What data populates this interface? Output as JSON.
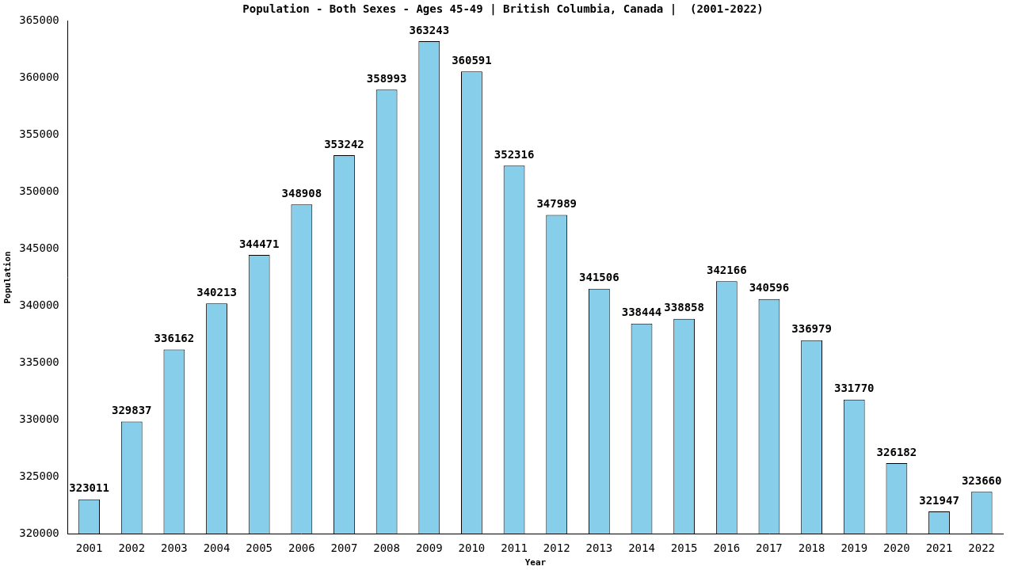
{
  "chart_data": {
    "type": "bar",
    "title": "Population - Both Sexes - Ages 45-49 | British Columbia, Canada |  (2001-2022)",
    "x_label": "Year",
    "y_label": "Population",
    "categories": [
      "2001",
      "2002",
      "2003",
      "2004",
      "2005",
      "2006",
      "2007",
      "2008",
      "2009",
      "2010",
      "2011",
      "2012",
      "2013",
      "2014",
      "2015",
      "2016",
      "2017",
      "2018",
      "2019",
      "2020",
      "2021",
      "2022"
    ],
    "values": [
      323011,
      329837,
      336162,
      340213,
      344471,
      348908,
      353242,
      358993,
      363243,
      360591,
      352316,
      347989,
      341506,
      338444,
      338858,
      342166,
      340596,
      336979,
      331770,
      326182,
      321947,
      323660
    ],
    "color": "#87ceeb",
    "ylim": [
      320000,
      365000
    ],
    "yticks": [
      320000,
      325000,
      330000,
      335000,
      340000,
      345000,
      350000,
      355000,
      360000,
      365000
    ],
    "grid": false,
    "data_labels": true
  }
}
